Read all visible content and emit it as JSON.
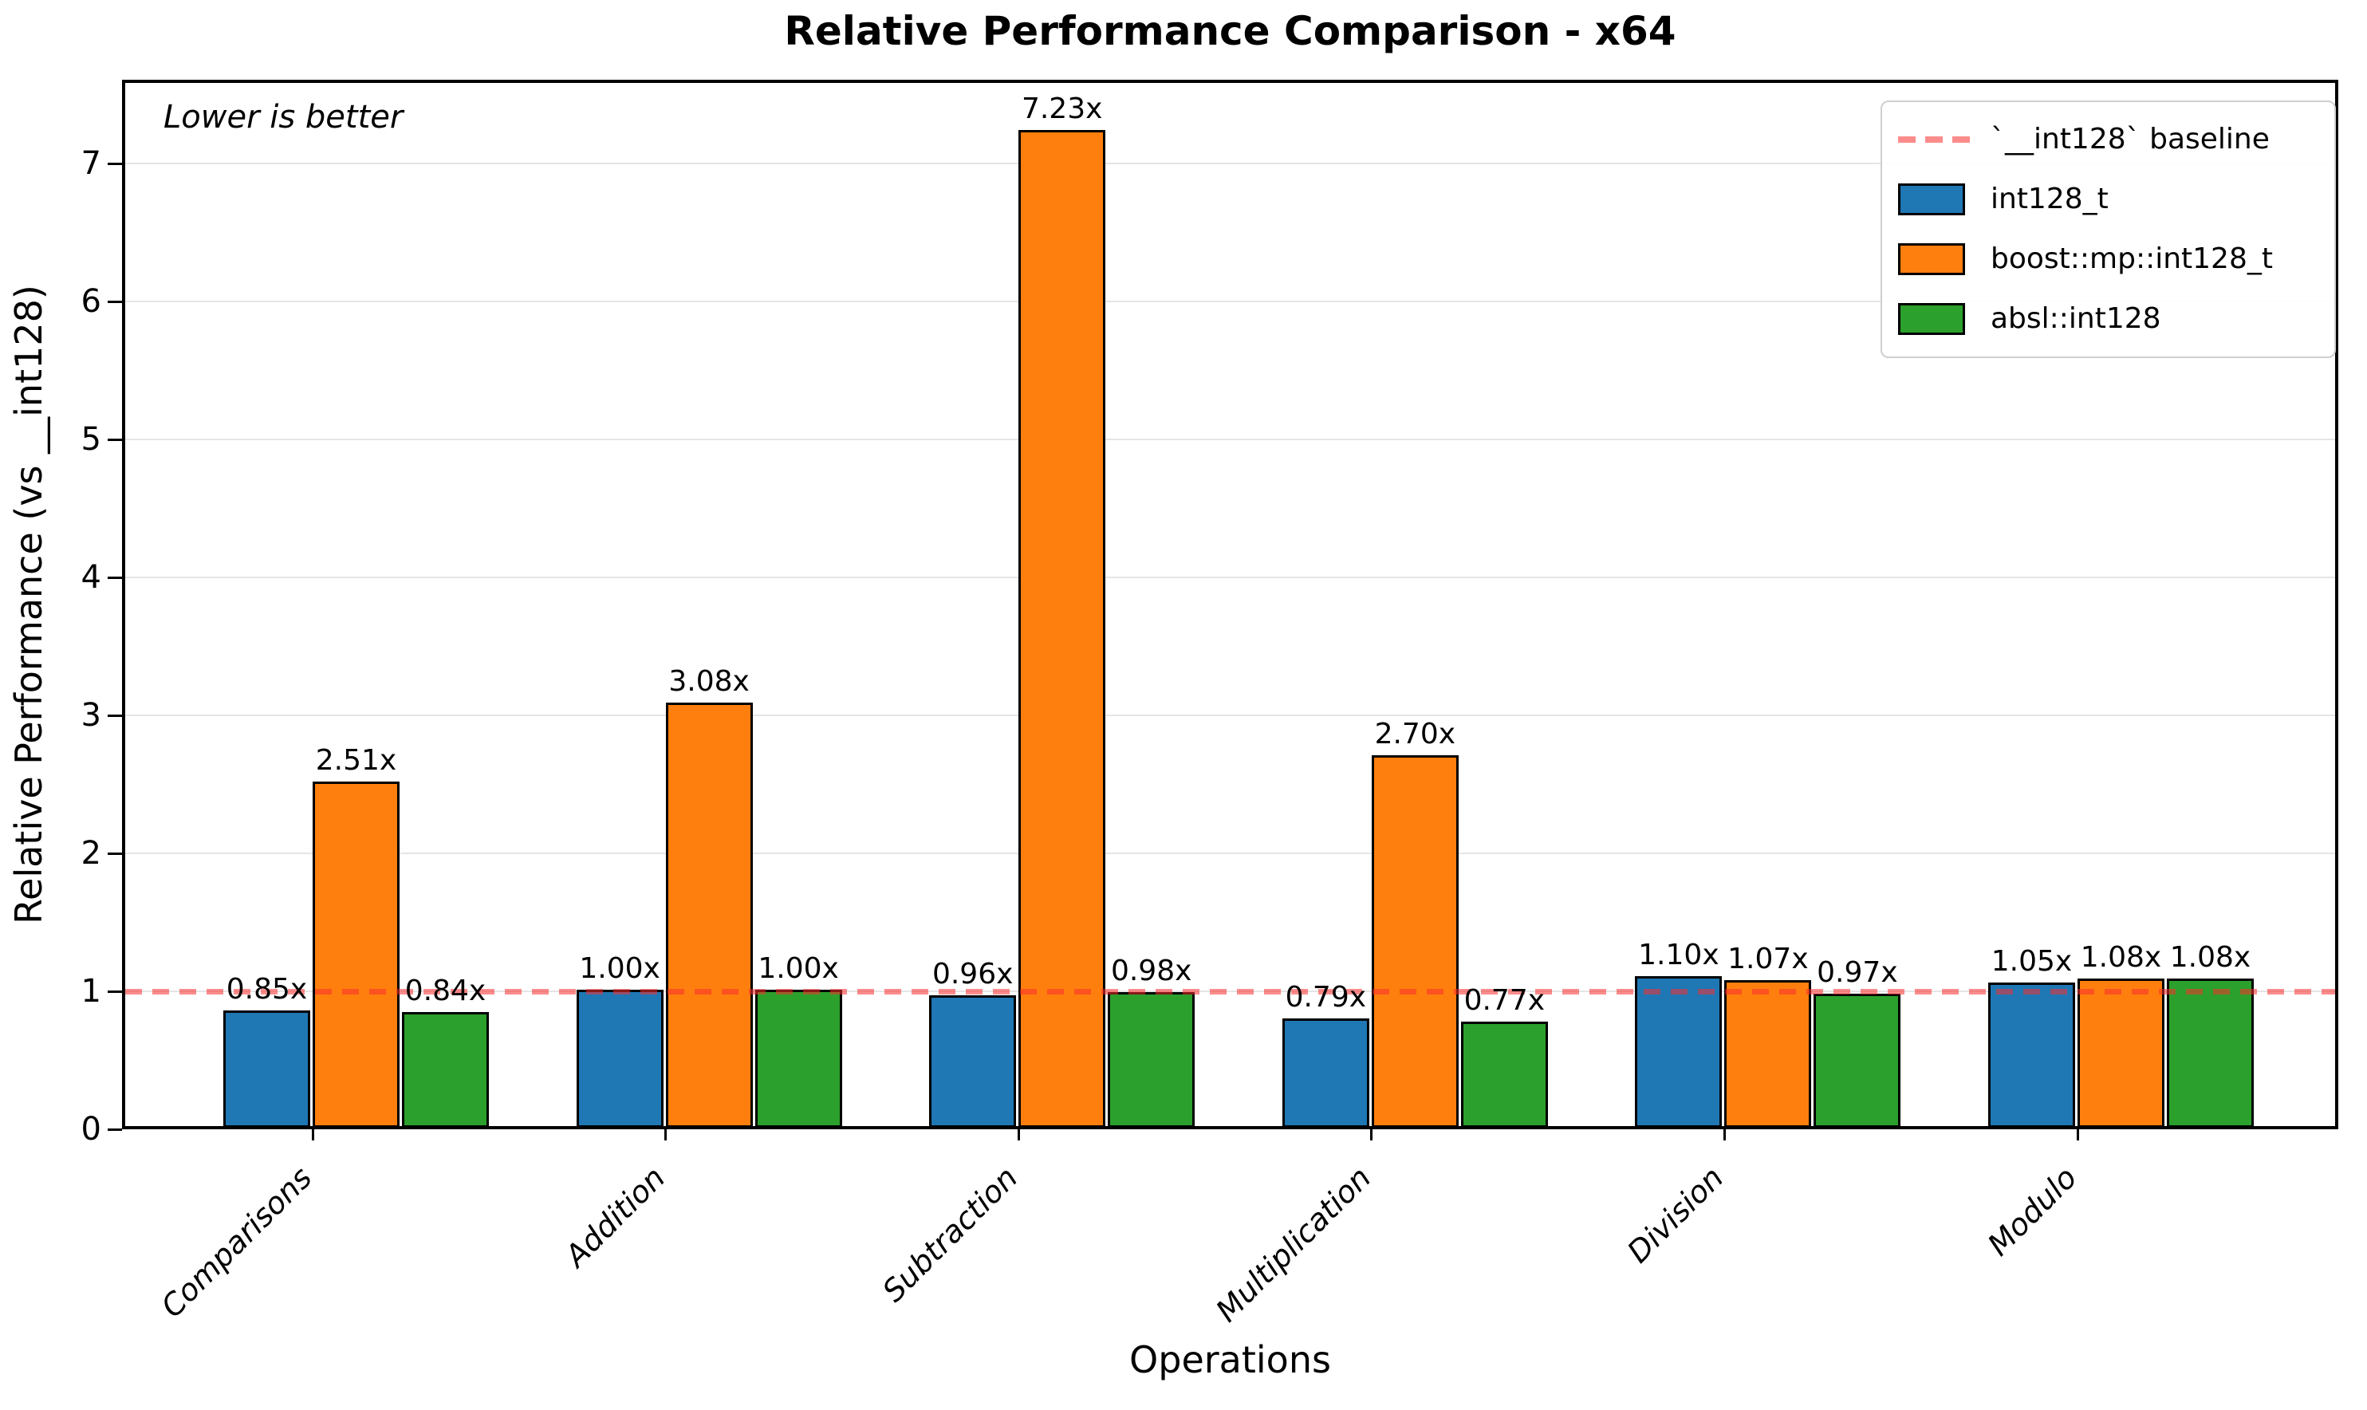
{
  "figure": {
    "title": "Relative Performance Comparison - x64",
    "annotation": "Lower is better",
    "xlabel": "Operations",
    "ylabel": "Relative Performance (vs __int128)"
  },
  "chart_data": {
    "type": "bar",
    "title": "Relative Performance Comparison - x64",
    "xlabel": "Operations",
    "ylabel": "Relative Performance (vs __int128)",
    "annotation": "Lower is better",
    "categories": [
      "Comparisons",
      "Addition",
      "Subtraction",
      "Multiplication",
      "Division",
      "Modulo"
    ],
    "series": [
      {
        "name": "int128_t",
        "color": "#1f77b4",
        "values": [
          0.85,
          1.0,
          0.96,
          0.79,
          1.1,
          1.05
        ],
        "labels": [
          "0.85x",
          "1.00x",
          "0.96x",
          "0.79x",
          "1.10x",
          "1.05x"
        ]
      },
      {
        "name": "boost::mp::int128_t",
        "color": "#ff7f0e",
        "values": [
          2.51,
          3.08,
          7.23,
          2.7,
          1.07,
          1.08
        ],
        "labels": [
          "2.51x",
          "3.08x",
          "7.23x",
          "2.70x",
          "1.07x",
          "1.08x"
        ]
      },
      {
        "name": "absl::int128",
        "color": "#2ca02c",
        "values": [
          0.84,
          1.0,
          0.98,
          0.77,
          0.97,
          1.08
        ],
        "labels": [
          "0.84x",
          "1.00x",
          "0.98x",
          "0.77x",
          "0.97x",
          "1.08x"
        ]
      }
    ],
    "baseline": {
      "value": 1.0,
      "label": "`__int128` baseline",
      "color": "#fa2d2d"
    },
    "yticks": [
      0,
      1,
      2,
      3,
      4,
      5,
      6,
      7
    ],
    "ylim": [
      0,
      7.6
    ],
    "grid": true,
    "legend_position": "upper right",
    "bar_edge_color": "#000000"
  }
}
